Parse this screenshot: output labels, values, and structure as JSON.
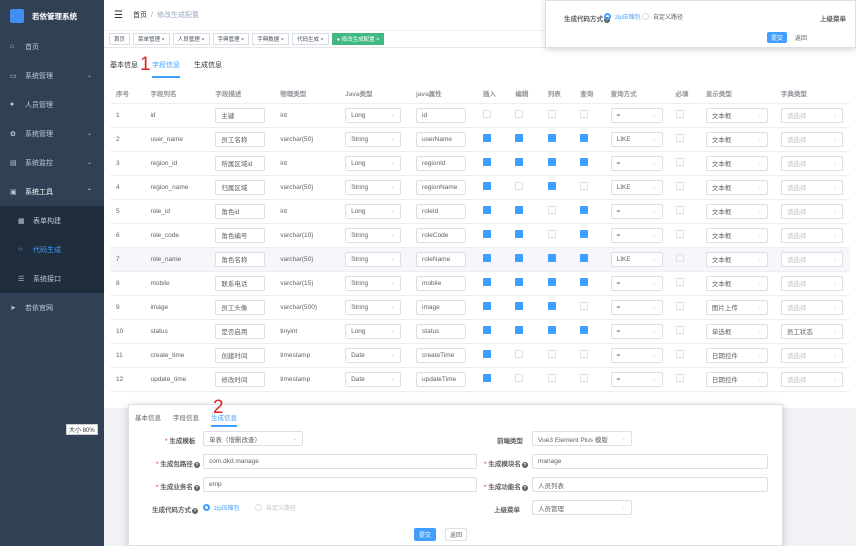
{
  "sidebar": {
    "title": "若依管理系统",
    "items": [
      {
        "icon": "home-icon",
        "label": "首页"
      },
      {
        "icon": "monitor-icon",
        "label": "系统管理"
      },
      {
        "icon": "user-icon",
        "label": "人员管理"
      },
      {
        "icon": "gear-icon",
        "label": "系统管理"
      },
      {
        "icon": "chart-icon",
        "label": "系统监控"
      },
      {
        "icon": "tool-icon",
        "label": "系统工具"
      },
      {
        "icon": "grid-icon",
        "label": "表单构建"
      },
      {
        "icon": "code-icon",
        "label": "代码生成"
      },
      {
        "icon": "doc-icon",
        "label": "系统接口"
      },
      {
        "icon": "send-icon",
        "label": "若依官网"
      }
    ]
  },
  "header": {
    "crumb1": "首页",
    "sep": "/",
    "crumb2": "修改生成配置"
  },
  "tags": [
    "首页",
    "菜单管理 ×",
    "人员管理 ×",
    "字典管理 ×",
    "字典数据 ×",
    "代码生成 ×",
    "● 修改生成配置 ×"
  ],
  "tabs": [
    "基本信息",
    "字段信息",
    "生成信息"
  ],
  "marker1": "1",
  "marker2": "2",
  "table": {
    "headers": [
      "序号",
      "字段列名",
      "字段描述",
      "物理类型",
      "Java类型",
      "java属性",
      "插入",
      "编辑",
      "列表",
      "查询",
      "查询方式",
      "必填",
      "显示类型",
      "字典类型"
    ],
    "rows": [
      [
        "1",
        "id",
        "主键",
        "int",
        "Long",
        "id",
        "=",
        "文本框",
        "请选择"
      ],
      [
        "2",
        "user_name",
        "员工名称",
        "varchar(50)",
        "String",
        "userName",
        "LIKE",
        "文本框",
        "请选择"
      ],
      [
        "3",
        "region_id",
        "所属区域id",
        "int",
        "Long",
        "regionId",
        "=",
        "文本框",
        "请选择"
      ],
      [
        "4",
        "region_name",
        "归属区域",
        "varchar(50)",
        "String",
        "regionName",
        "LIKE",
        "文本框",
        "请选择"
      ],
      [
        "5",
        "role_id",
        "角色id",
        "int",
        "Long",
        "roleId",
        "=",
        "文本框",
        "请选择"
      ],
      [
        "6",
        "role_code",
        "角色编号",
        "varchar(10)",
        "String",
        "roleCode",
        "=",
        "文本框",
        "请选择"
      ],
      [
        "7",
        "role_name",
        "角色名称",
        "varchar(50)",
        "String",
        "roleName",
        "LIKE",
        "文本框",
        "请选择"
      ],
      [
        "8",
        "mobile",
        "联系电话",
        "varchar(15)",
        "String",
        "mobile",
        "=",
        "文本框",
        "请选择"
      ],
      [
        "9",
        "image",
        "员工头像",
        "varchar(500)",
        "String",
        "image",
        "=",
        "图片上传",
        "请选择"
      ],
      [
        "10",
        "status",
        "是否启用",
        "tinyint",
        "Long",
        "status",
        "=",
        "单选框",
        "员工状态"
      ],
      [
        "11",
        "create_time",
        "创建时间",
        "timestamp",
        "Date",
        "createTime",
        "=",
        "日期控件",
        "请选择"
      ],
      [
        "12",
        "update_time",
        "修改时间",
        "timestamp",
        "Date",
        "updateTime",
        "=",
        "日期控件",
        "请选择"
      ]
    ]
  },
  "popup1": {
    "label": "生成代码方式",
    "opt1": "zip压缩包",
    "opt2": "自定义路径",
    "menu_label": "上级菜单",
    "submit": "提交",
    "back": "返回"
  },
  "popup2": {
    "tabs": [
      "基本信息",
      "字段信息",
      "生成信息"
    ],
    "tpl_label": "生成模板",
    "tpl_val": "单表（增删改查）",
    "front_label": "前端类型",
    "front_val": "Vue3 Element Plus 模版",
    "pkg_label": "生成包路径",
    "pkg_val": "com.dkd.manage",
    "mod_label": "生成模块名",
    "mod_val": "manage",
    "biz_label": "生成业务名",
    "biz_val": "emp",
    "fn_label": "生成功能名",
    "fn_val": "人员列表",
    "way_label": "生成代码方式",
    "way1": "zip压缩包",
    "way2": "自定义路径",
    "menu_label": "上级菜单",
    "menu_val": "人员管理",
    "submit": "提交",
    "back": "返回"
  },
  "zoom": "大小 80%"
}
